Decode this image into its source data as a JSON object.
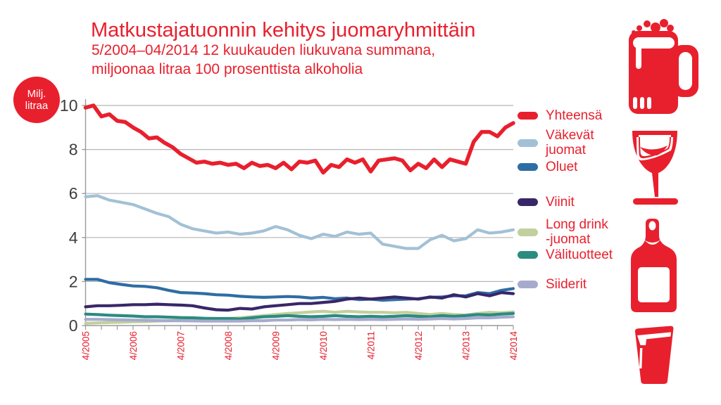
{
  "header": {
    "title": "Matkustajatuonnin kehitys juomaryhmittäin",
    "subtitle1": "5/2004–04/2014 12 kuukauden liukuvana summana,",
    "subtitle2": "miljoonaa litraa 100 prosenttista alkoholia"
  },
  "badge": {
    "line1": "Milj.",
    "line2": "litraa"
  },
  "colors": {
    "brand_red": "#e8202d",
    "grid": "#b5b5b5",
    "axis": "#9a9a9a",
    "y_label": "#3d3d3d",
    "x_label": "#e8202d",
    "legend_text": "#e8202d"
  },
  "icons": [
    "beer-mug",
    "wine-glass",
    "wine-bottle",
    "drink-glass"
  ],
  "chart_data": {
    "type": "line",
    "title": "Matkustajatuonnin kehitys juomaryhmittäin",
    "ylabel": "Milj. litraa",
    "ylim": [
      0,
      10
    ],
    "y_ticks": [
      0,
      2,
      4,
      6,
      8,
      10
    ],
    "x_tick_labels": [
      "4/2005",
      "4/2006",
      "4/2007",
      "4/2008",
      "4/2009",
      "4/2010",
      "4/2011",
      "4/2012",
      "4/2013",
      "4/2014"
    ],
    "x_months_total": 108,
    "x_label_every_months": 12,
    "minor_tick_every_months": 4,
    "grid": true,
    "legend_position": "right",
    "series": [
      {
        "id": "yhteensa",
        "name": "Yhteensä",
        "legend_lines": [
          "Yhteensä"
        ],
        "color": "#e8202d",
        "step_months": 2,
        "values": [
          9.9,
          10.0,
          9.5,
          9.6,
          9.3,
          9.25,
          9.0,
          8.8,
          8.5,
          8.55,
          8.3,
          8.1,
          7.8,
          7.6,
          7.4,
          7.45,
          7.35,
          7.4,
          7.3,
          7.35,
          7.15,
          7.4,
          7.25,
          7.3,
          7.15,
          7.4,
          7.1,
          7.45,
          7.4,
          7.5,
          6.95,
          7.3,
          7.2,
          7.55,
          7.4,
          7.55,
          7.0,
          7.5,
          7.55,
          7.6,
          7.5,
          7.05,
          7.35,
          7.15,
          7.55,
          7.2,
          7.55,
          7.45,
          7.35,
          8.35,
          8.8,
          8.8,
          8.6,
          9.0,
          9.2
        ]
      },
      {
        "id": "vakevat-juomat",
        "name": "Väkevät juomat",
        "legend_lines": [
          "Väkevät",
          "juomat"
        ],
        "color": "#a3c1d5",
        "step_months": 3,
        "values": [
          5.85,
          5.9,
          5.7,
          5.6,
          5.5,
          5.3,
          5.1,
          4.95,
          4.6,
          4.4,
          4.3,
          4.2,
          4.25,
          4.15,
          4.2,
          4.3,
          4.5,
          4.35,
          4.1,
          3.95,
          4.15,
          4.05,
          4.25,
          4.15,
          4.2,
          3.7,
          3.6,
          3.5,
          3.5,
          3.9,
          4.1,
          3.85,
          3.95,
          4.35,
          4.2,
          4.25,
          4.35
        ]
      },
      {
        "id": "oluet",
        "name": "Oluet",
        "legend_lines": [
          "Oluet"
        ],
        "color": "#2e6da4",
        "step_months": 3,
        "values": [
          2.1,
          2.1,
          1.95,
          1.87,
          1.8,
          1.78,
          1.72,
          1.6,
          1.5,
          1.48,
          1.45,
          1.4,
          1.38,
          1.33,
          1.3,
          1.28,
          1.3,
          1.32,
          1.3,
          1.25,
          1.28,
          1.22,
          1.25,
          1.18,
          1.2,
          1.15,
          1.18,
          1.2,
          1.22,
          1.28,
          1.3,
          1.35,
          1.35,
          1.5,
          1.45,
          1.6,
          1.68
        ]
      },
      {
        "id": "viinit",
        "name": "Viinit",
        "legend_lines": [
          "Viinit"
        ],
        "color": "#382768",
        "step_months": 3,
        "values": [
          0.85,
          0.9,
          0.9,
          0.92,
          0.95,
          0.95,
          0.97,
          0.95,
          0.93,
          0.9,
          0.8,
          0.72,
          0.7,
          0.78,
          0.75,
          0.85,
          0.9,
          0.95,
          1.0,
          1.0,
          1.05,
          1.1,
          1.2,
          1.25,
          1.2,
          1.25,
          1.3,
          1.25,
          1.2,
          1.3,
          1.25,
          1.4,
          1.3,
          1.45,
          1.35,
          1.5,
          1.45
        ]
      },
      {
        "id": "long-drink-juomat",
        "name": "Long drink -juomat",
        "legend_lines": [
          "Long drink",
          "-juomat"
        ],
        "color": "#c3cf9c",
        "step_months": 3,
        "values": [
          0.1,
          0.12,
          0.14,
          0.15,
          0.17,
          0.18,
          0.2,
          0.22,
          0.24,
          0.26,
          0.28,
          0.3,
          0.32,
          0.35,
          0.4,
          0.45,
          0.5,
          0.55,
          0.58,
          0.62,
          0.65,
          0.6,
          0.65,
          0.62,
          0.6,
          0.6,
          0.58,
          0.6,
          0.55,
          0.5,
          0.55,
          0.5,
          0.48,
          0.55,
          0.6,
          0.58,
          0.62
        ]
      },
      {
        "id": "valituotteet",
        "name": "Välituotteet",
        "legend_lines": [
          "Välituotteet"
        ],
        "color": "#2b8b80",
        "step_months": 3,
        "values": [
          0.52,
          0.5,
          0.47,
          0.45,
          0.43,
          0.4,
          0.4,
          0.38,
          0.36,
          0.35,
          0.33,
          0.32,
          0.32,
          0.3,
          0.35,
          0.4,
          0.42,
          0.45,
          0.42,
          0.4,
          0.42,
          0.45,
          0.42,
          0.4,
          0.42,
          0.4,
          0.42,
          0.45,
          0.42,
          0.4,
          0.45,
          0.42,
          0.45,
          0.5,
          0.48,
          0.52,
          0.55
        ]
      },
      {
        "id": "siiderit",
        "name": "Siiderit",
        "legend_lines": [
          "Siiderit"
        ],
        "color": "#a6abce",
        "step_months": 3,
        "values": [
          0.28,
          0.28,
          0.27,
          0.26,
          0.25,
          0.24,
          0.23,
          0.22,
          0.22,
          0.21,
          0.2,
          0.2,
          0.2,
          0.2,
          0.22,
          0.22,
          0.25,
          0.25,
          0.27,
          0.26,
          0.28,
          0.27,
          0.28,
          0.27,
          0.28,
          0.27,
          0.28,
          0.3,
          0.28,
          0.3,
          0.32,
          0.3,
          0.32,
          0.35,
          0.35,
          0.38,
          0.4
        ]
      }
    ]
  }
}
